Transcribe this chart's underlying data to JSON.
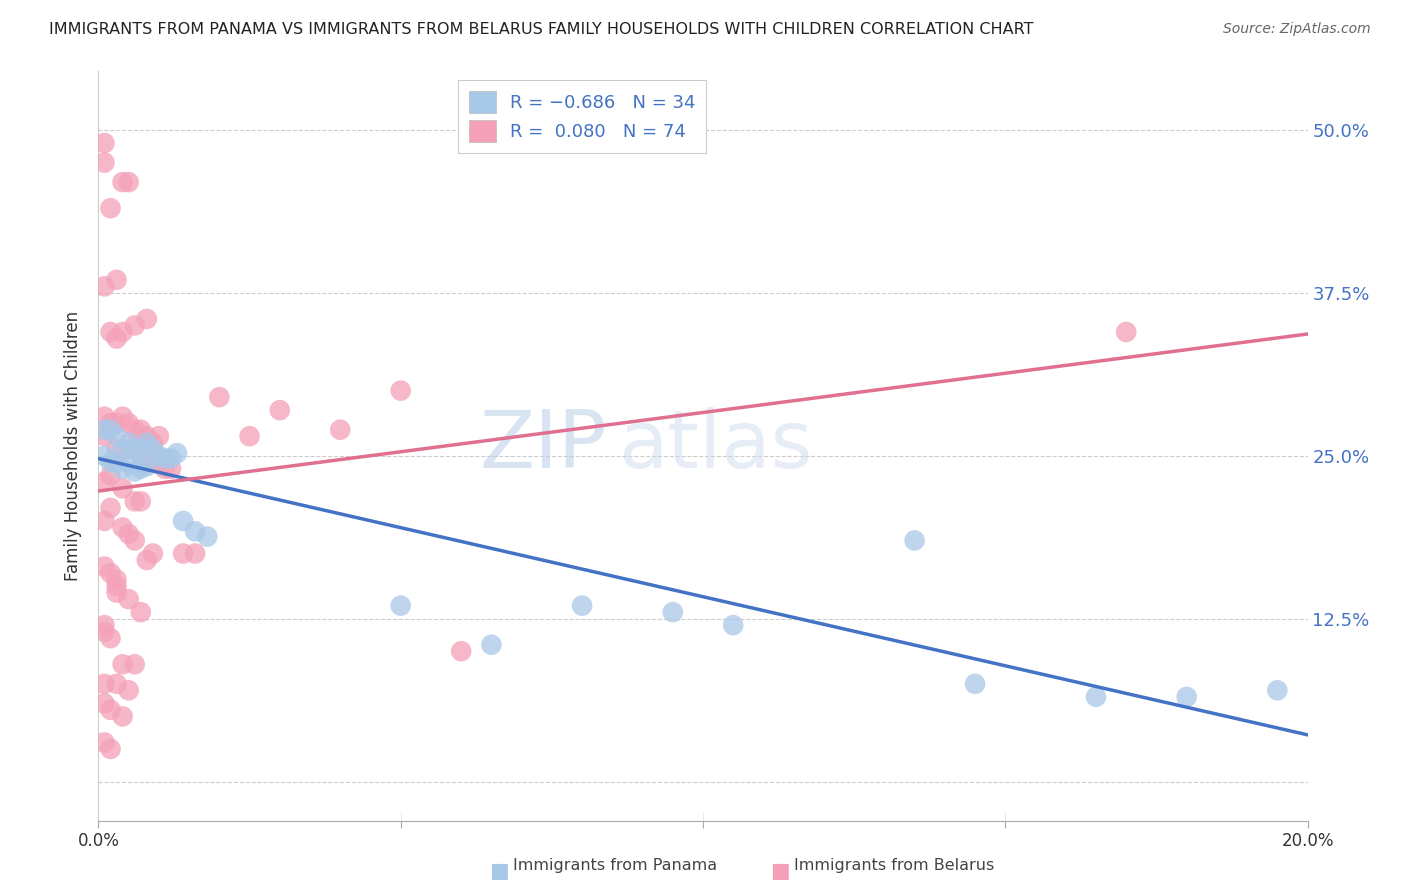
{
  "title": "IMMIGRANTS FROM PANAMA VS IMMIGRANTS FROM BELARUS FAMILY HOUSEHOLDS WITH CHILDREN CORRELATION CHART",
  "source": "Source: ZipAtlas.com",
  "ylabel": "Family Households with Children",
  "xlim": [
    0.0,
    0.2
  ],
  "ylim": [
    -0.03,
    0.545
  ],
  "panama_color": "#a8c8e8",
  "belarus_color": "#f4a0b8",
  "panama_line_color": "#4472c4",
  "belarus_line_color": "#e07090",
  "grid_color": "#cccccc",
  "background_color": "#ffffff",
  "watermark_zip": "ZIP",
  "watermark_atlas": "atlas",
  "panama_x": [
    0.001,
    0.001,
    0.002,
    0.002,
    0.003,
    0.003,
    0.004,
    0.004,
    0.005,
    0.005,
    0.006,
    0.006,
    0.007,
    0.007,
    0.008,
    0.008,
    0.009,
    0.01,
    0.011,
    0.012,
    0.013,
    0.014,
    0.016,
    0.018,
    0.05,
    0.065,
    0.08,
    0.095,
    0.105,
    0.135,
    0.145,
    0.165,
    0.18,
    0.195
  ],
  "panama_y": [
    0.27,
    0.25,
    0.27,
    0.245,
    0.265,
    0.245,
    0.255,
    0.24,
    0.26,
    0.245,
    0.255,
    0.238,
    0.255,
    0.24,
    0.26,
    0.242,
    0.255,
    0.25,
    0.248,
    0.248,
    0.252,
    0.2,
    0.192,
    0.188,
    0.135,
    0.105,
    0.135,
    0.13,
    0.12,
    0.185,
    0.075,
    0.065,
    0.065,
    0.07
  ],
  "belarus_x": [
    0.001,
    0.001,
    0.001,
    0.001,
    0.001,
    0.001,
    0.002,
    0.002,
    0.002,
    0.002,
    0.002,
    0.003,
    0.003,
    0.003,
    0.003,
    0.003,
    0.004,
    0.004,
    0.004,
    0.004,
    0.005,
    0.005,
    0.005,
    0.005,
    0.006,
    0.006,
    0.006,
    0.006,
    0.007,
    0.007,
    0.007,
    0.008,
    0.008,
    0.008,
    0.009,
    0.009,
    0.009,
    0.01,
    0.01,
    0.011,
    0.012,
    0.014,
    0.016,
    0.02,
    0.025,
    0.05,
    0.06,
    0.001,
    0.003,
    0.005,
    0.007,
    0.001,
    0.002,
    0.004,
    0.006,
    0.001,
    0.003,
    0.005,
    0.002,
    0.004,
    0.006,
    0.008,
    0.001,
    0.003,
    0.001,
    0.002,
    0.004,
    0.001,
    0.002,
    0.001,
    0.17,
    0.03,
    0.04
  ],
  "belarus_y": [
    0.49,
    0.38,
    0.28,
    0.265,
    0.23,
    0.12,
    0.44,
    0.345,
    0.275,
    0.21,
    0.16,
    0.385,
    0.34,
    0.275,
    0.255,
    0.15,
    0.46,
    0.345,
    0.28,
    0.195,
    0.46,
    0.275,
    0.255,
    0.19,
    0.35,
    0.27,
    0.255,
    0.215,
    0.27,
    0.25,
    0.215,
    0.355,
    0.265,
    0.245,
    0.26,
    0.245,
    0.175,
    0.265,
    0.245,
    0.24,
    0.24,
    0.175,
    0.175,
    0.295,
    0.265,
    0.3,
    0.1,
    0.165,
    0.155,
    0.14,
    0.13,
    0.115,
    0.11,
    0.09,
    0.09,
    0.075,
    0.075,
    0.07,
    0.235,
    0.225,
    0.185,
    0.17,
    0.2,
    0.145,
    0.06,
    0.055,
    0.05,
    0.03,
    0.025,
    0.475,
    0.345,
    0.285,
    0.27
  ]
}
